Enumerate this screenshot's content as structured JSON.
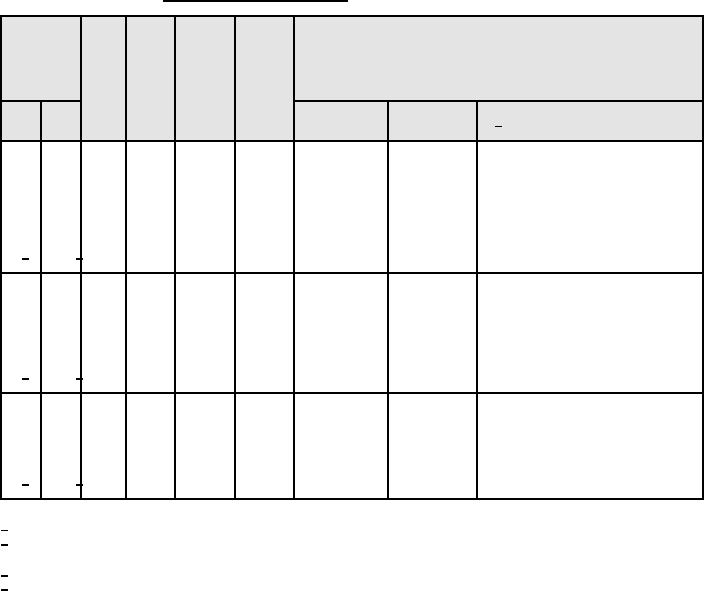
{
  "title": "",
  "table": {
    "header_shading": "#e4e4e4",
    "header": {
      "row1": [
        "",
        "",
        "",
        "",
        "",
        ""
      ],
      "row2": [
        "",
        "",
        "",
        "",
        ""
      ]
    },
    "rows": [
      [
        "",
        "",
        "",
        "",
        "",
        "",
        "",
        "",
        ""
      ],
      [
        "",
        "",
        "",
        "",
        "",
        "",
        "",
        "",
        ""
      ],
      [
        "",
        "",
        "",
        "",
        "",
        "",
        "",
        "",
        ""
      ]
    ]
  },
  "footnotes": [
    "",
    "",
    "",
    ""
  ]
}
